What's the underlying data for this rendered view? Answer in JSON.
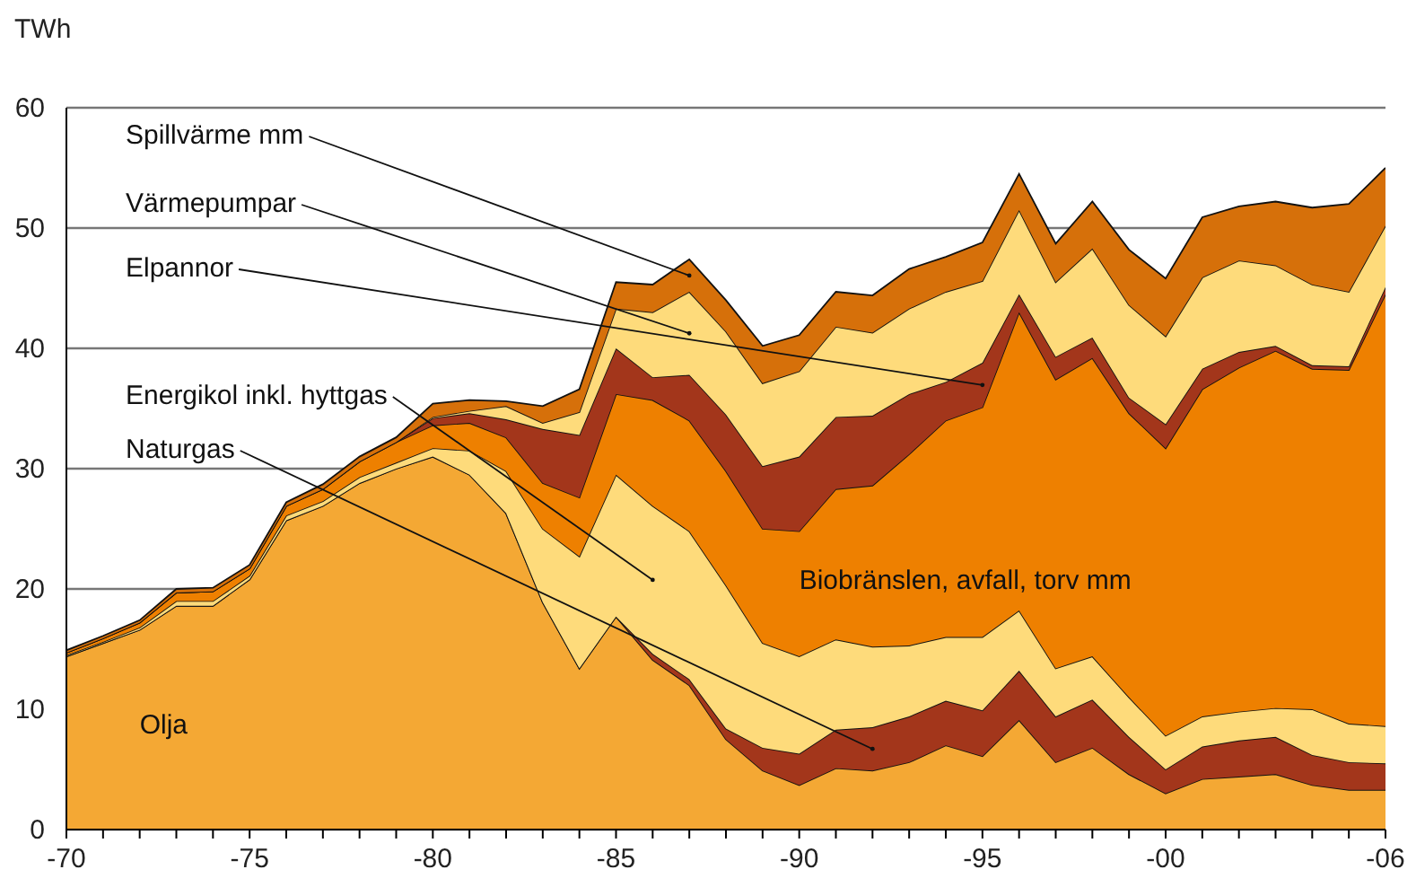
{
  "chart_data": {
    "type": "area",
    "stacked": true,
    "ylabel": "TWh",
    "grid": "y",
    "categories": [
      "-70",
      null,
      null,
      null,
      null,
      "-75",
      null,
      null,
      null,
      null,
      "-80",
      null,
      null,
      null,
      null,
      "-85",
      null,
      null,
      null,
      null,
      "-90",
      null,
      null,
      null,
      null,
      "-95",
      null,
      null,
      null,
      null,
      "-00",
      null,
      null,
      null,
      null,
      null,
      "-06"
    ],
    "ylim": [
      0,
      60
    ],
    "yticks": [
      0,
      10,
      20,
      30,
      40,
      50,
      60
    ],
    "series": [
      {
        "name": "Olja",
        "color": "#f4a834",
        "values": [
          14.4,
          15.5,
          16.6,
          18.6,
          18.6,
          20.8,
          25.7,
          26.9,
          28.8,
          30.0,
          31.0,
          29.5,
          26.3,
          18.9,
          13.4,
          17.7,
          14.1,
          12.0,
          7.5,
          4.9,
          3.7,
          5.1,
          4.9,
          5.6,
          7.0,
          6.1,
          9.1,
          5.6,
          6.8,
          4.6,
          3.0,
          4.2,
          4.4,
          4.6,
          3.7,
          3.3,
          3.3
        ]
      },
      {
        "name": "Naturgas",
        "color": "#a3361b",
        "values": [
          0,
          0,
          0,
          0,
          0,
          0,
          0,
          0,
          0,
          0,
          0,
          0,
          0,
          0,
          0,
          0,
          0.5,
          0.5,
          0.9,
          1.9,
          2.6,
          3.2,
          3.6,
          3.8,
          3.7,
          3.8,
          4.1,
          3.8,
          4.0,
          3.1,
          2.0,
          2.7,
          3.0,
          3.1,
          2.5,
          2.3,
          2.2
        ]
      },
      {
        "name": "Energikol inkl. hyttgas",
        "color": "#fedb7b",
        "values": [
          0.1,
          0.1,
          0.2,
          0.4,
          0.4,
          0.3,
          0.4,
          0.4,
          0.5,
          0.5,
          0.7,
          2.0,
          3.5,
          6.1,
          9.3,
          11.8,
          12.3,
          12.3,
          11.9,
          8.7,
          8.1,
          7.5,
          6.7,
          5.9,
          5.3,
          6.1,
          5.0,
          4.0,
          3.6,
          3.3,
          2.8,
          2.5,
          2.4,
          2.4,
          3.8,
          3.2,
          3.1
        ]
      },
      {
        "name": "Biobränslen, avfall, torv mm",
        "color": "#ee8000",
        "values": [
          0.2,
          0.3,
          0.4,
          0.7,
          0.8,
          0.6,
          0.8,
          1.0,
          1.3,
          1.7,
          1.9,
          2.3,
          2.8,
          3.8,
          4.9,
          6.7,
          8.8,
          9.2,
          9.5,
          9.5,
          10.4,
          12.5,
          13.4,
          15.9,
          18.0,
          19.1,
          24.8,
          24.0,
          24.8,
          23.6,
          23.9,
          27.2,
          28.6,
          29.7,
          28.3,
          29.4,
          35.9
        ]
      },
      {
        "name": "Elpannor",
        "color": "#a3361b",
        "values": [
          0,
          0,
          0,
          0,
          0,
          0,
          0,
          0,
          0,
          0,
          0.6,
          0.8,
          1.5,
          4.5,
          5.2,
          3.8,
          1.9,
          3.8,
          4.7,
          5.2,
          6.2,
          6.0,
          5.8,
          5.0,
          3.2,
          3.7,
          1.5,
          1.9,
          1.7,
          1.3,
          2.0,
          1.7,
          1.3,
          0.4,
          0.3,
          0.3,
          0.6
        ]
      },
      {
        "name": "Värmepumpar",
        "color": "#fedb7b",
        "values": [
          0,
          0,
          0,
          0,
          0,
          0,
          0,
          0,
          0,
          0,
          0.1,
          0.2,
          1.1,
          0.5,
          1.9,
          3.3,
          5.4,
          6.9,
          6.9,
          6.9,
          7.1,
          7.5,
          6.9,
          7.1,
          7.5,
          6.8,
          7.0,
          6.2,
          7.4,
          7.7,
          7.3,
          7.6,
          7.6,
          6.7,
          6.7,
          6.2,
          5.1
        ]
      },
      {
        "name": "Spillvärme mm",
        "color": "#d6700a",
        "values": [
          0.2,
          0.2,
          0.2,
          0.3,
          0.3,
          0.3,
          0.3,
          0.4,
          0.4,
          0.4,
          1.1,
          0.9,
          0.4,
          1.4,
          1.9,
          2.2,
          2.3,
          2.7,
          2.6,
          3.1,
          3.0,
          2.9,
          3.1,
          3.3,
          2.9,
          3.2,
          3.0,
          3.2,
          3.9,
          4.6,
          4.8,
          5.0,
          4.5,
          5.3,
          6.4,
          7.3,
          4.8
        ]
      }
    ]
  }
}
